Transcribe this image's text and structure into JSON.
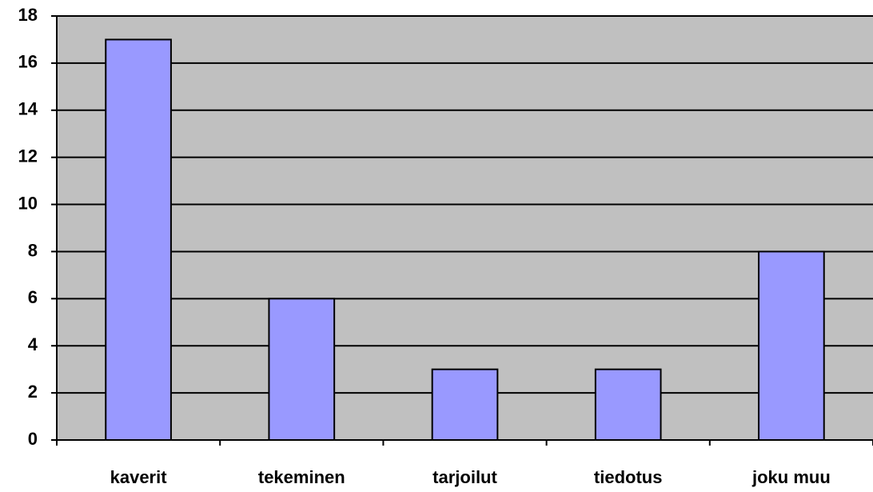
{
  "chart_data": {
    "type": "bar",
    "categories": [
      "kaverit",
      "tekeminen",
      "tarjoilut",
      "tiedotus",
      "joku muu"
    ],
    "values": [
      17,
      6,
      3,
      3,
      8
    ],
    "color": "#9999ff",
    "ylim": [
      0,
      18
    ],
    "yticks": [
      0,
      2,
      4,
      6,
      8,
      10,
      12,
      14,
      16,
      18
    ],
    "grid": true
  }
}
